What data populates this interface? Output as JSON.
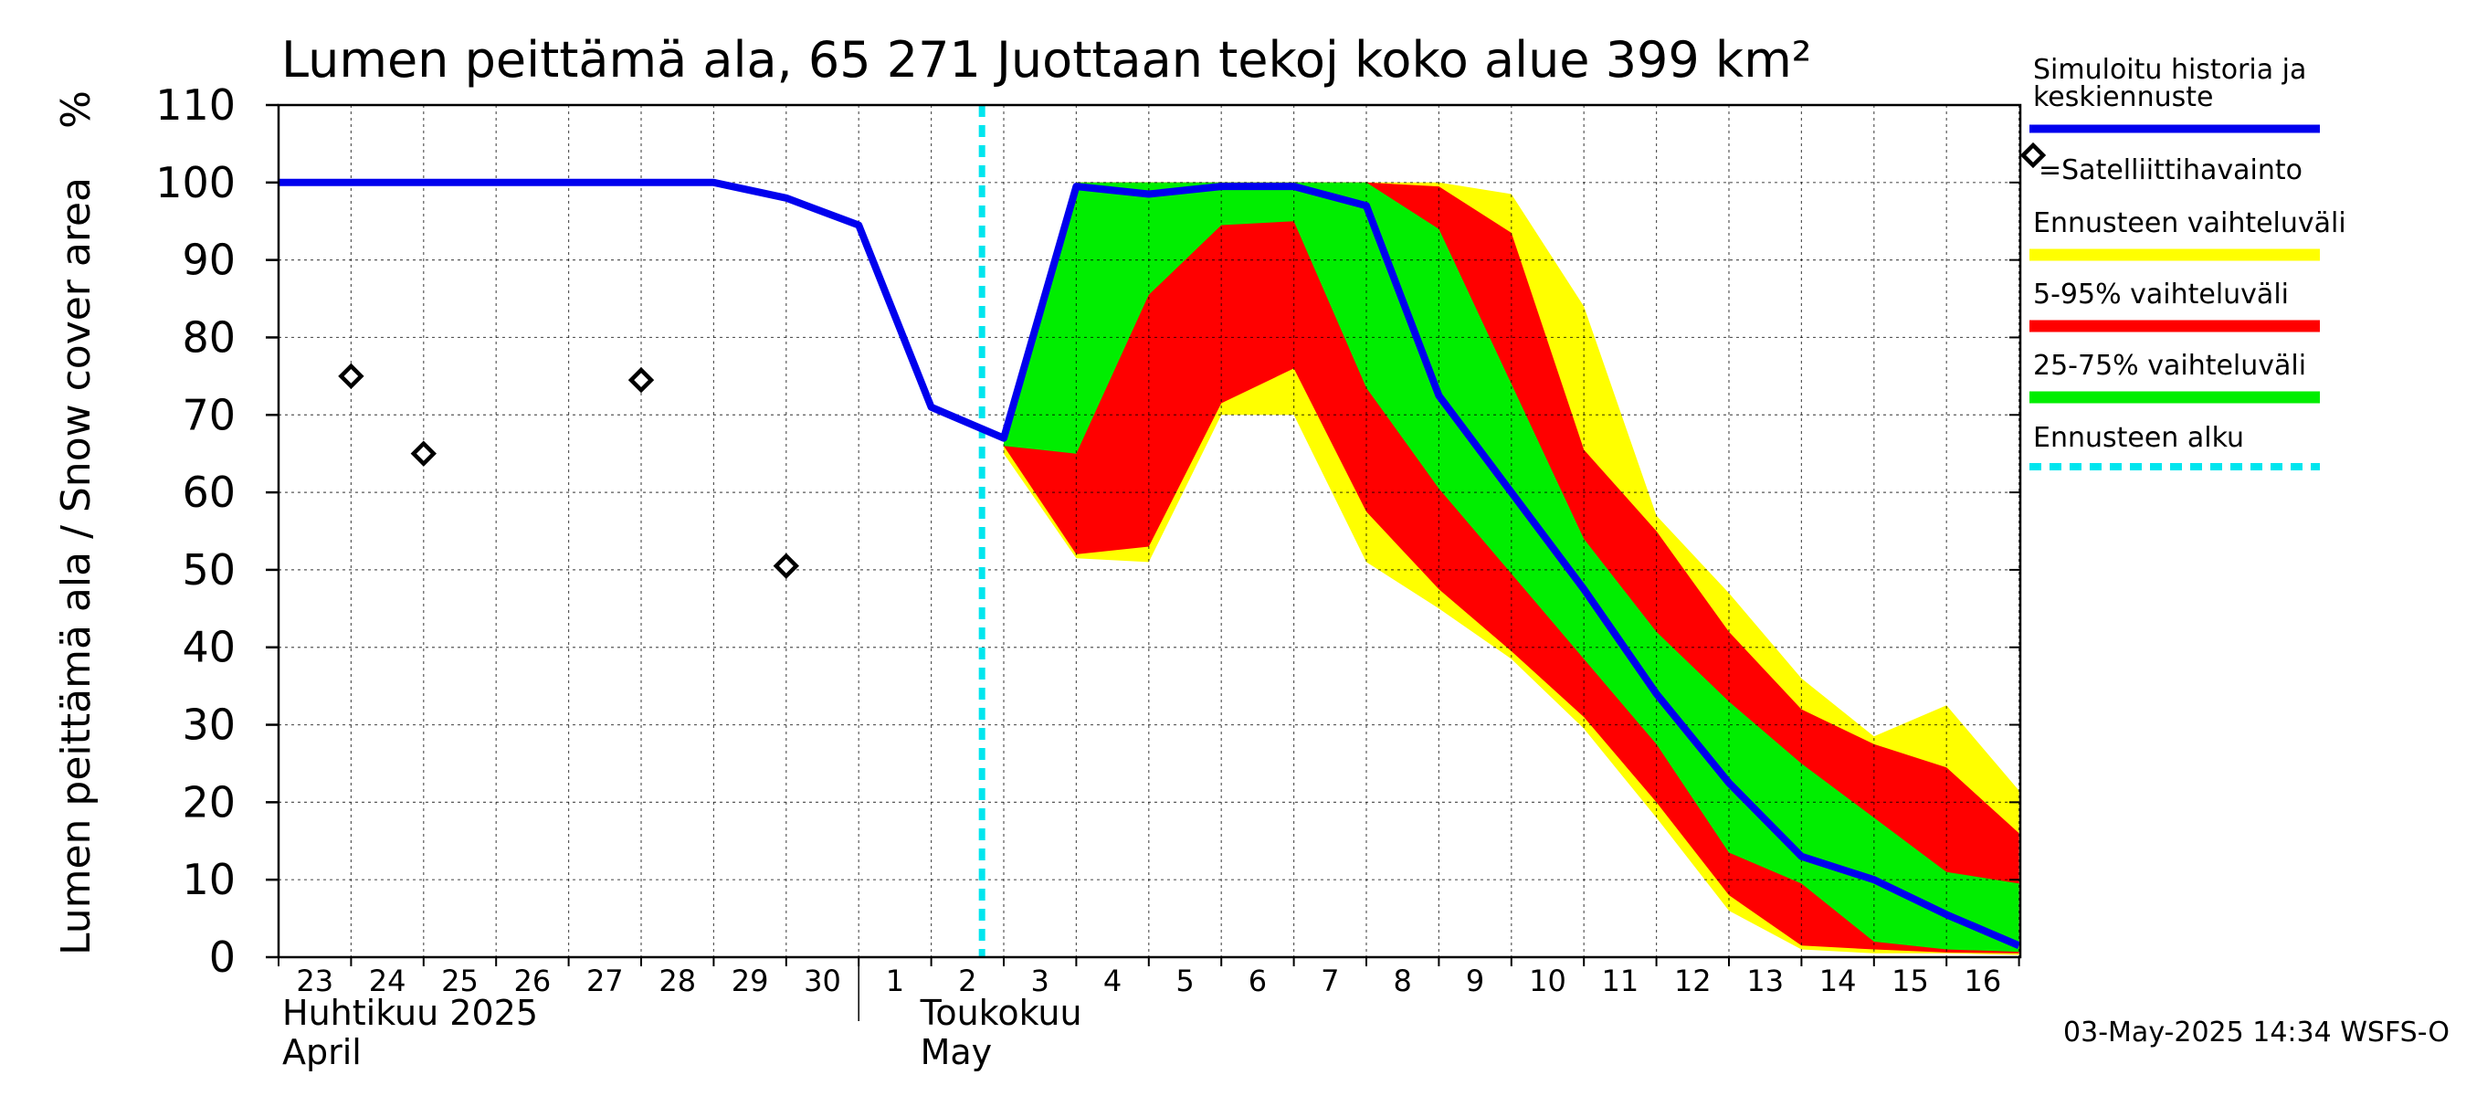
{
  "chart_data": {
    "type": "area",
    "title": "Lumen peittämä ala, 65 271 Juottaan tekoj koko alue 399 km²",
    "ylabel": "Lumen peittämä ala / Snow cover area",
    "yunit": "%",
    "ylim": [
      0,
      110
    ],
    "yticks": [
      0,
      10,
      20,
      30,
      40,
      50,
      60,
      70,
      80,
      90,
      100,
      110
    ],
    "grid": true,
    "legend_position": "right",
    "x_dates": [
      "2025-04-23",
      "2025-04-24",
      "2025-04-25",
      "2025-04-26",
      "2025-04-27",
      "2025-04-28",
      "2025-04-29",
      "2025-04-30",
      "2025-05-01",
      "2025-05-02",
      "2025-05-03",
      "2025-05-04",
      "2025-05-05",
      "2025-05-06",
      "2025-05-07",
      "2025-05-08",
      "2025-05-09",
      "2025-05-10",
      "2025-05-11",
      "2025-05-12",
      "2025-05-13",
      "2025-05-14",
      "2025-05-15",
      "2025-05-16",
      "2025-05-17"
    ],
    "x_tick_labels": [
      "23",
      "24",
      "25",
      "26",
      "27",
      "28",
      "29",
      "30",
      "1",
      "2",
      "3",
      "4",
      "5",
      "6",
      "7",
      "8",
      "9",
      "10",
      "11",
      "12",
      "13",
      "14",
      "15",
      "16"
    ],
    "month_labels": [
      {
        "line1": "Huhtikuu  2025",
        "line2": "April"
      },
      {
        "line1": "Toukokuu",
        "line2": "May"
      }
    ],
    "forecast_start": "2025-05-03",
    "series": [
      {
        "name": "Simuloitu historia ja keskiennuste",
        "color": "#0000ee",
        "points": [
          [
            "2025-04-23",
            100
          ],
          [
            "2025-04-24",
            100
          ],
          [
            "2025-04-25",
            100
          ],
          [
            "2025-04-26",
            100
          ],
          [
            "2025-04-27",
            100
          ],
          [
            "2025-04-28",
            100
          ],
          [
            "2025-04-29",
            100
          ],
          [
            "2025-04-30",
            98
          ],
          [
            "2025-05-01",
            94.5
          ],
          [
            "2025-05-02",
            71
          ],
          [
            "2025-05-03",
            67
          ],
          [
            "2025-05-04",
            99.5
          ],
          [
            "2025-05-05",
            98.5
          ],
          [
            "2025-05-06",
            99.5
          ],
          [
            "2025-05-07",
            99.5
          ],
          [
            "2025-05-08",
            97
          ],
          [
            "2025-05-09",
            72.5
          ],
          [
            "2025-05-10",
            60
          ],
          [
            "2025-05-11",
            47.5
          ],
          [
            "2025-05-12",
            34
          ],
          [
            "2025-05-13",
            22.5
          ],
          [
            "2025-05-14",
            13
          ],
          [
            "2025-05-15",
            10
          ],
          [
            "2025-05-16",
            5.5
          ],
          [
            "2025-05-17",
            1.5
          ]
        ]
      },
      {
        "name": "=Satelliittihavainto",
        "color": "#000000",
        "points": [
          [
            "2025-04-24",
            75
          ],
          [
            "2025-04-25",
            65
          ],
          [
            "2025-04-28",
            74.5
          ],
          [
            "2025-04-30",
            50.5
          ]
        ]
      }
    ],
    "bands": [
      {
        "name": "Ennusteen vaihteluväli",
        "color": "#ffff00",
        "x": [
          "2025-05-03",
          "2025-05-04",
          "2025-05-05",
          "2025-05-06",
          "2025-05-07",
          "2025-05-08",
          "2025-05-09",
          "2025-05-10",
          "2025-05-11",
          "2025-05-12",
          "2025-05-13",
          "2025-05-14",
          "2025-05-15",
          "2025-05-16",
          "2025-05-17"
        ],
        "upper": [
          67,
          100,
          100,
          100,
          100,
          100,
          100,
          98.5,
          84,
          57,
          47,
          36,
          28.5,
          32.5,
          21.5
        ],
        "lower": [
          65,
          51.5,
          51,
          70,
          70,
          51,
          45,
          38.5,
          29.5,
          18,
          6,
          1,
          0.5,
          0.5,
          0.3
        ]
      },
      {
        "name": "5-95% vaihteluväli",
        "color": "#ff0000",
        "x": [
          "2025-05-03",
          "2025-05-04",
          "2025-05-05",
          "2025-05-06",
          "2025-05-07",
          "2025-05-08",
          "2025-05-09",
          "2025-05-10",
          "2025-05-11",
          "2025-05-12",
          "2025-05-13",
          "2025-05-14",
          "2025-05-15",
          "2025-05-16",
          "2025-05-17"
        ],
        "upper": [
          67,
          100,
          100,
          100,
          100,
          100,
          99.5,
          93.5,
          65.5,
          55,
          42,
          32,
          27.5,
          24.5,
          16
        ],
        "lower": [
          66,
          52,
          53,
          71.5,
          76,
          57.5,
          47.5,
          39.5,
          31,
          20,
          8,
          1.5,
          1,
          0.6,
          0.5
        ]
      },
      {
        "name": "25-75% vaihteluväli",
        "color": "#00ee00",
        "x": [
          "2025-05-03",
          "2025-05-04",
          "2025-05-05",
          "2025-05-06",
          "2025-05-07",
          "2025-05-08",
          "2025-05-09",
          "2025-05-10",
          "2025-05-11",
          "2025-05-12",
          "2025-05-13",
          "2025-05-14",
          "2025-05-15",
          "2025-05-16",
          "2025-05-17"
        ],
        "upper": [
          66.5,
          100,
          100,
          100,
          100,
          100,
          94,
          74,
          54,
          42,
          33,
          25,
          18,
          11,
          9.5
        ],
        "lower": [
          66,
          65,
          85.5,
          94.5,
          95,
          73.5,
          60.5,
          49.5,
          38.5,
          27.5,
          13.5,
          9.5,
          2,
          1,
          0.7
        ]
      }
    ],
    "legend": [
      {
        "label": "Simuloitu historia ja keskiennuste",
        "color": "#0000ee",
        "style": "line"
      },
      {
        "label": "=Satelliittihavainto",
        "color": "#000000",
        "style": "diamond"
      },
      {
        "label": "Ennusteen vaihteluväli",
        "color": "#ffff00",
        "style": "line"
      },
      {
        "label": "5-95% vaihteluväli",
        "color": "#ff0000",
        "style": "line"
      },
      {
        "label": "25-75% vaihteluväli",
        "color": "#00ee00",
        "style": "line"
      },
      {
        "label": "Ennusteen alku",
        "color": "#00e5ee",
        "style": "dashed"
      }
    ],
    "footer": "03-May-2025 14:34 WSFS-O"
  }
}
